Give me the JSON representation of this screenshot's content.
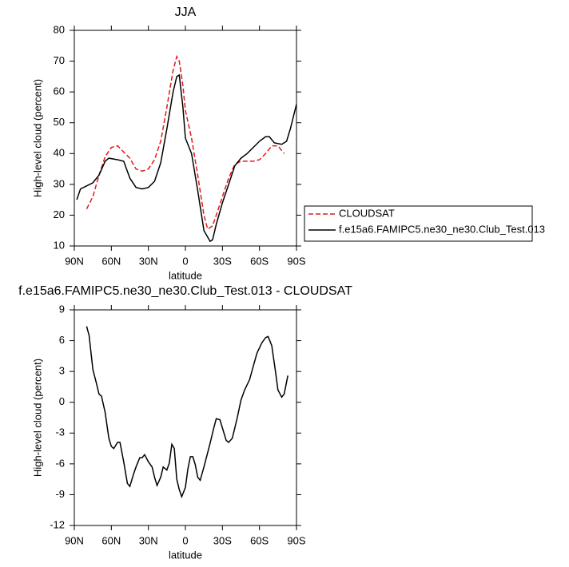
{
  "chart_data": [
    {
      "type": "line",
      "title": "JJA",
      "xlabel": "latitude",
      "ylabel": "High-level cloud (percent)",
      "xlim": [
        90,
        -90
      ],
      "xticks": [
        {
          "value": 90,
          "label": "90N"
        },
        {
          "value": 60,
          "label": "60N"
        },
        {
          "value": 30,
          "label": "30N"
        },
        0,
        {
          "value": -30,
          "label": "30S"
        },
        {
          "value": -60,
          "label": "60S"
        },
        {
          "value": -90,
          "label": "90S"
        }
      ],
      "ylim": [
        10,
        80
      ],
      "yticks": [
        10,
        20,
        30,
        40,
        50,
        60,
        70,
        80
      ],
      "legend": "outside-right",
      "series": [
        {
          "name": "CLOUDSAT",
          "color": "#e0191b",
          "dash": true,
          "x": [
            80,
            75,
            70,
            65,
            60,
            55,
            50,
            45,
            40,
            35,
            30,
            25,
            20,
            15,
            10,
            7,
            5,
            2,
            0,
            -5,
            -10,
            -15,
            -18,
            -22,
            -25,
            -30,
            -35,
            -40,
            -45,
            -50,
            -55,
            -60,
            -65,
            -70,
            -75,
            -80
          ],
          "values": [
            22,
            26,
            33,
            39,
            42,
            42.5,
            40.5,
            38.5,
            35,
            34.3,
            35,
            38,
            44,
            55,
            67,
            71.5,
            70,
            62,
            54,
            45,
            33,
            20,
            15.5,
            16.5,
            20,
            26,
            32,
            36.5,
            37.5,
            37.5,
            37.5,
            38,
            40,
            42.5,
            42.5,
            40
          ]
        },
        {
          "name": "f.e15a6.FAMIPC5.ne30_ne30.Club_Test.013",
          "color": "#000000",
          "dash": false,
          "x": [
            88,
            85,
            80,
            75,
            70,
            65,
            62,
            55,
            50,
            45,
            40,
            35,
            30,
            25,
            20,
            15,
            10,
            7,
            5,
            2,
            0,
            -5,
            -10,
            -15,
            -20,
            -22,
            -25,
            -30,
            -35,
            -40,
            -45,
            -50,
            -55,
            -60,
            -65,
            -68,
            -72,
            -78,
            -82,
            -85,
            -90
          ],
          "values": [
            25,
            28.5,
            29.5,
            30.5,
            33,
            37.5,
            38.5,
            38,
            37.5,
            32,
            29,
            28.5,
            29,
            31,
            37,
            48,
            60,
            65,
            65.5,
            55,
            45,
            40,
            28,
            15,
            11.5,
            12,
            17,
            24,
            30,
            36,
            38.5,
            40,
            42,
            44,
            45.5,
            45.5,
            43.5,
            43,
            44,
            48,
            56
          ]
        }
      ]
    },
    {
      "type": "line",
      "title": "f.e15a6.FAMIPC5.ne30_ne30.Club_Test.013 - CLOUDSAT",
      "xlabel": "latitude",
      "ylabel": "High-level cloud (percent)",
      "xlim": [
        90,
        -90
      ],
      "xticks": [
        {
          "value": 90,
          "label": "90N"
        },
        {
          "value": 60,
          "label": "60N"
        },
        {
          "value": 30,
          "label": "30N"
        },
        0,
        {
          "value": -30,
          "label": "30S"
        },
        {
          "value": -60,
          "label": "60S"
        },
        {
          "value": -90,
          "label": "90S"
        }
      ],
      "ylim": [
        -12,
        9
      ],
      "yticks": [
        -12,
        -9,
        -6,
        -3,
        0,
        3,
        6,
        9
      ],
      "series": [
        {
          "color": "#000000",
          "dash": false,
          "x": [
            80,
            78,
            75,
            72,
            70,
            68,
            65,
            62,
            60,
            58,
            55,
            53,
            50,
            47,
            45,
            42,
            40,
            37,
            35,
            33,
            30,
            27,
            25,
            23,
            20,
            18,
            15,
            13,
            11,
            9,
            7,
            5,
            3,
            0,
            -2,
            -4,
            -6,
            -8,
            -10,
            -12,
            -15,
            -20,
            -23,
            -25,
            -28,
            -30,
            -33,
            -35,
            -38,
            -42,
            -45,
            -48,
            -52,
            -55,
            -58,
            -62,
            -65,
            -67,
            -70,
            -73,
            -75,
            -78,
            -80,
            -83
          ],
          "values": [
            7.4,
            6.5,
            3.2,
            1.8,
            0.8,
            0.6,
            -1,
            -3.5,
            -4.3,
            -4.5,
            -3.9,
            -3.9,
            -5.8,
            -7.9,
            -8.2,
            -7,
            -6.3,
            -5.4,
            -5.4,
            -5.1,
            -5.8,
            -6.3,
            -7.3,
            -8.1,
            -7.3,
            -6.3,
            -6.6,
            -5.9,
            -4.1,
            -4.5,
            -7.5,
            -8.5,
            -9.2,
            -8.3,
            -6.5,
            -5.3,
            -5.3,
            -6.1,
            -7.3,
            -7.6,
            -6.3,
            -4,
            -2.5,
            -1.6,
            -1.7,
            -2.5,
            -3.7,
            -3.9,
            -3.5,
            -1.5,
            0.2,
            1.2,
            2.2,
            3.5,
            4.8,
            5.8,
            6.3,
            6.4,
            5.5,
            3,
            1.2,
            0.5,
            0.8,
            2.6
          ]
        }
      ]
    }
  ]
}
